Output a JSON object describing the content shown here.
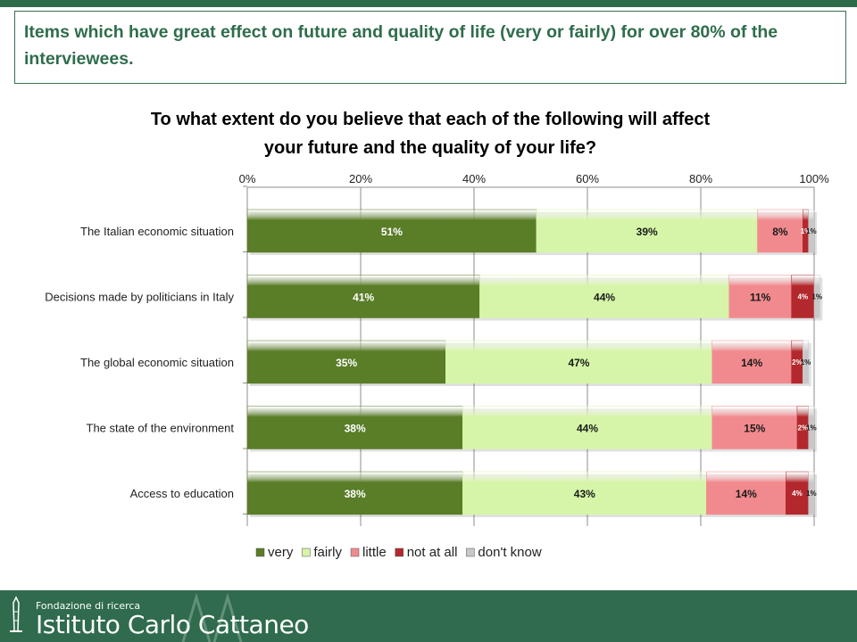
{
  "slide": {
    "title": "Items which have great effect on future and quality of life (very or fairly) for over 80% of the interviewees."
  },
  "footer": {
    "logo_subtitle": "Fondazione di ricerca",
    "logo_name": "Istituto Carlo Cattaneo"
  },
  "colors": {
    "brand_green": "#2f6b4c",
    "very": "#5a7d28",
    "fairly": "#d6f5a8",
    "little": "#f18a8e",
    "not_at_all": "#b3282d",
    "dont_know": "#c8c8c8"
  },
  "chart_data": {
    "type": "bar",
    "orientation": "horizontal",
    "stacked": true,
    "title": "To what extent do you believe that each of the following will affect your future and the quality of your life?",
    "categories": [
      "The Italian economic situation",
      "Decisions made by politicians in Italy",
      "The global economic situation",
      "The state of the environment",
      "Access to education"
    ],
    "series": [
      {
        "name": "very",
        "values": [
          51,
          41,
          35,
          38,
          38
        ]
      },
      {
        "name": "fairly",
        "values": [
          39,
          44,
          47,
          44,
          43
        ]
      },
      {
        "name": "little",
        "values": [
          8,
          11,
          14,
          15,
          14
        ]
      },
      {
        "name": "not at all",
        "values": [
          1,
          4,
          2,
          2,
          4
        ]
      },
      {
        "name": "don't know",
        "values": [
          1,
          1,
          1,
          1,
          1
        ]
      }
    ],
    "xlim": [
      0,
      100
    ],
    "xticks": [
      "0%",
      "20%",
      "40%",
      "60%",
      "80%",
      "100%"
    ],
    "xaxis_position": "top",
    "grid": true,
    "legend_position": "bottom"
  }
}
